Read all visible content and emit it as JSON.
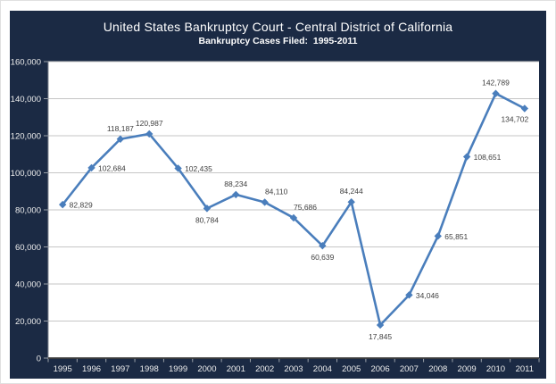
{
  "page": {
    "background": "#ffffff"
  },
  "chart_data": {
    "type": "line",
    "title": "United States Bankruptcy Court - Central District of California",
    "subtitle": "Bankruptcy Cases Filed:  1995-2011",
    "xlabel": "",
    "ylabel": "",
    "legend": false,
    "grid": true,
    "categories": [
      "1995",
      "1996",
      "1997",
      "1998",
      "1999",
      "2000",
      "2001",
      "2002",
      "2003",
      "2004",
      "2005",
      "2006",
      "2007",
      "2008",
      "2009",
      "2010",
      "2011"
    ],
    "values": [
      82829,
      102684,
      118187,
      120987,
      102435,
      80784,
      88234,
      84110,
      75686,
      60639,
      84244,
      17845,
      34046,
      65851,
      108651,
      142789,
      134702
    ],
    "point_labels": [
      "82,829",
      "102,684",
      "118,187",
      "120,987",
      "102,435",
      "80,784",
      "88,234",
      "84,110",
      "75,686",
      "60,639",
      "84,244",
      "17,845",
      "34,046",
      "65,851",
      "108,651",
      "142,789",
      "134,702"
    ],
    "point_label_positions": [
      "right",
      "right",
      "above",
      "above",
      "right",
      "below",
      "above",
      "above-right",
      "above-right",
      "below",
      "above",
      "below",
      "right",
      "right",
      "right",
      "above",
      "below-left"
    ],
    "ylim": [
      0,
      160000
    ],
    "ytick_step": 20000,
    "ytick_labels": [
      "0",
      "20,000",
      "40,000",
      "60,000",
      "80,000",
      "100,000",
      "120,000",
      "140,000",
      "160,000"
    ],
    "colors": {
      "panel_background": "#1b2a44",
      "plot_background": "#ffffff",
      "line": "#4a7ebc",
      "marker": "#4a7ebc",
      "gridline": "#c6c6c6",
      "left_axis": "#8a8f98",
      "bottom_axis": "#3c3c3c",
      "tick": "#9aa0a8",
      "axis_text": "#ededed",
      "point_label_text": "#3f3f3f",
      "title_text": "#ffffff"
    }
  }
}
